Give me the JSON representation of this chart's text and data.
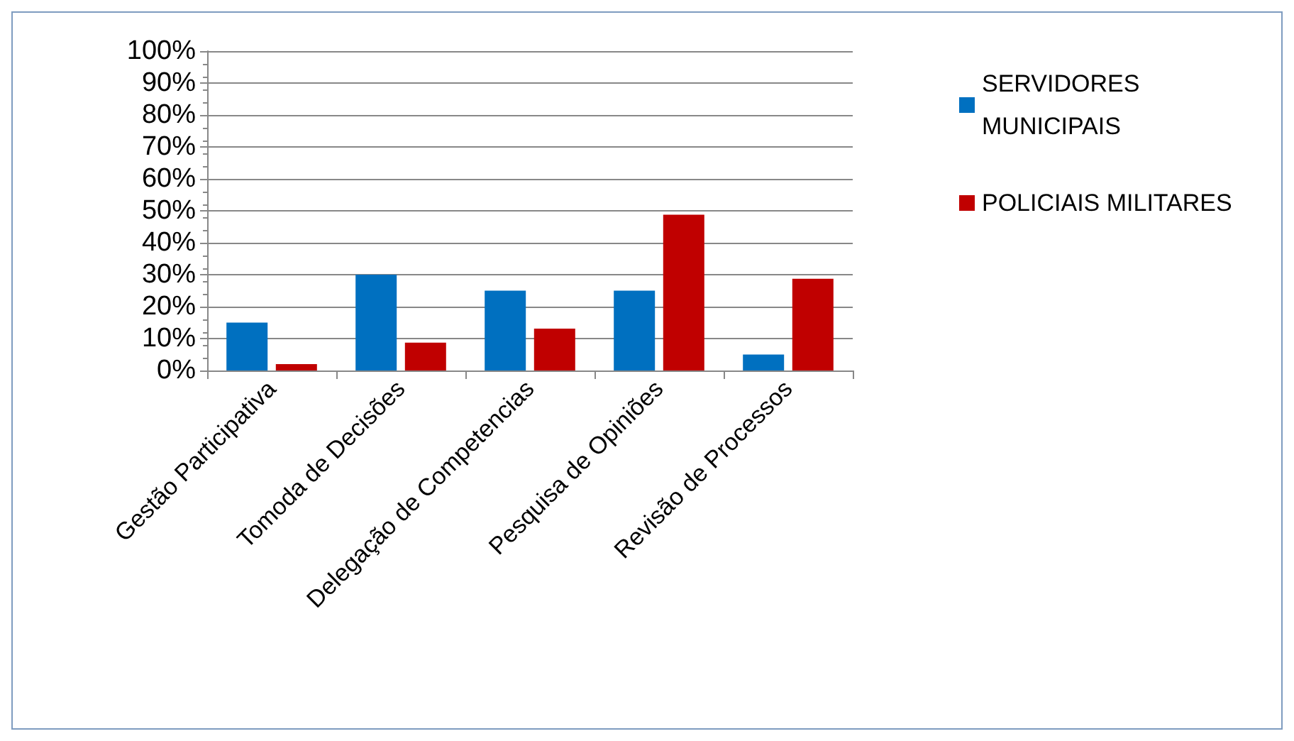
{
  "chart_data": {
    "type": "bar",
    "categories": [
      "Gestão Participativa",
      "Tomoda de Decisões",
      "Delegação de Competencias",
      "Pesquisa de Opiniões",
      "Revisão de Processos"
    ],
    "series": [
      {
        "name": "SERVIDORES MUNICIPAIS",
        "color": "#0070c0",
        "values": [
          15,
          30,
          25,
          25,
          5
        ]
      },
      {
        "name": "POLICIAIS MILITARES",
        "color": "#c00000",
        "values": [
          2,
          8.7,
          13.1,
          48.8,
          28.7
        ]
      }
    ],
    "ylim": [
      0,
      100
    ],
    "yticks": [
      {
        "value": 0,
        "label": "0%"
      },
      {
        "value": 10,
        "label": "10%"
      },
      {
        "value": 20,
        "label": "20%"
      },
      {
        "value": 30,
        "label": "30%"
      },
      {
        "value": 40,
        "label": "40%"
      },
      {
        "value": 50,
        "label": "50%"
      },
      {
        "value": 60,
        "label": "60%"
      },
      {
        "value": 70,
        "label": "70%"
      },
      {
        "value": 80,
        "label": "80%"
      },
      {
        "value": 90,
        "label": "90%"
      },
      {
        "value": 100,
        "label": "100%"
      }
    ],
    "grid": "y",
    "legend": "right"
  }
}
